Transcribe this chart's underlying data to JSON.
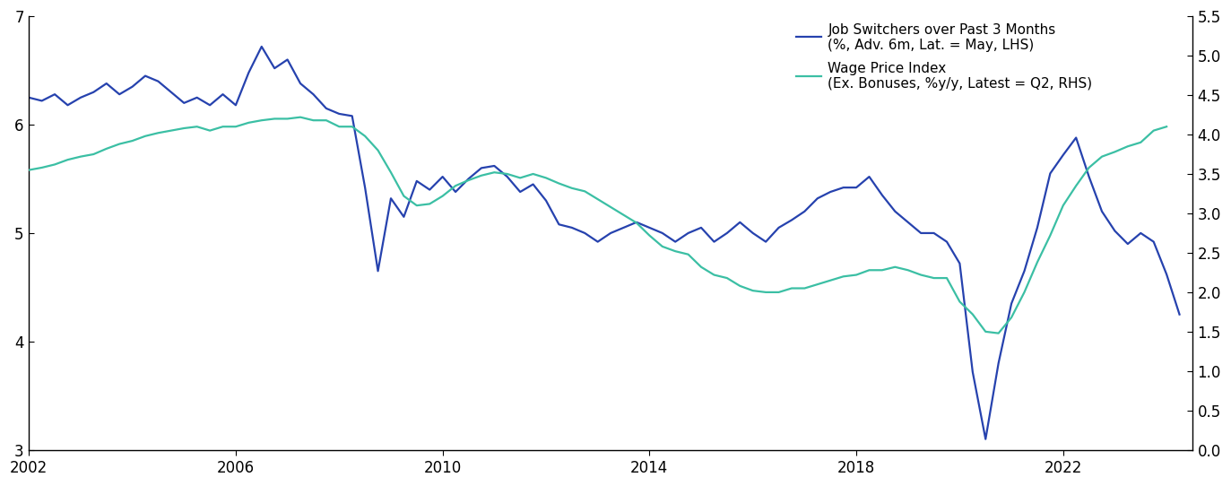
{
  "legend_line1": "Job Switchers over Past 3 Months",
  "legend_line2": "(%, Adv. 6m, Lat. = May, LHS)",
  "legend_line3": "Wage Price Index",
  "legend_line4": "(Ex. Bonuses, %y/y, Latest = Q2, RHS)",
  "blue_color": "#2642AE",
  "green_color": "#3BBFA4",
  "lhs_ylim": [
    3,
    7
  ],
  "lhs_yticks": [
    3,
    4,
    5,
    6,
    7
  ],
  "rhs_ylim": [
    0.0,
    5.5
  ],
  "rhs_yticks": [
    0.0,
    0.5,
    1.0,
    1.5,
    2.0,
    2.5,
    3.0,
    3.5,
    4.0,
    4.5,
    5.0,
    5.5
  ],
  "blue_x": [
    2002.0,
    2002.25,
    2002.5,
    2002.75,
    2003.0,
    2003.25,
    2003.5,
    2003.75,
    2004.0,
    2004.25,
    2004.5,
    2004.75,
    2005.0,
    2005.25,
    2005.5,
    2005.75,
    2006.0,
    2006.25,
    2006.5,
    2006.75,
    2007.0,
    2007.25,
    2007.5,
    2007.75,
    2008.0,
    2008.25,
    2008.5,
    2008.75,
    2009.0,
    2009.25,
    2009.5,
    2009.75,
    2010.0,
    2010.25,
    2010.5,
    2010.75,
    2011.0,
    2011.25,
    2011.5,
    2011.75,
    2012.0,
    2012.25,
    2012.5,
    2012.75,
    2013.0,
    2013.25,
    2013.5,
    2013.75,
    2014.0,
    2014.25,
    2014.5,
    2014.75,
    2015.0,
    2015.25,
    2015.5,
    2015.75,
    2016.0,
    2016.25,
    2016.5,
    2016.75,
    2017.0,
    2017.25,
    2017.5,
    2017.75,
    2018.0,
    2018.25,
    2018.5,
    2018.75,
    2019.0,
    2019.25,
    2019.5,
    2019.75,
    2020.0,
    2020.25,
    2020.5,
    2020.75,
    2021.0,
    2021.25,
    2021.5,
    2021.75,
    2022.0,
    2022.25,
    2022.5,
    2022.75,
    2023.0,
    2023.25,
    2023.5,
    2023.75,
    2024.0,
    2024.25
  ],
  "blue_y": [
    6.25,
    6.22,
    6.28,
    6.18,
    6.25,
    6.3,
    6.38,
    6.28,
    6.35,
    6.45,
    6.4,
    6.3,
    6.2,
    6.25,
    6.18,
    6.28,
    6.18,
    6.48,
    6.72,
    6.52,
    6.6,
    6.38,
    6.28,
    6.15,
    6.1,
    6.08,
    5.42,
    4.65,
    5.32,
    5.15,
    5.48,
    5.4,
    5.52,
    5.38,
    5.5,
    5.6,
    5.62,
    5.52,
    5.38,
    5.45,
    5.3,
    5.08,
    5.05,
    5.0,
    4.92,
    5.0,
    5.05,
    5.1,
    5.05,
    5.0,
    4.92,
    5.0,
    5.05,
    4.92,
    5.0,
    5.1,
    5.0,
    4.92,
    5.05,
    5.12,
    5.2,
    5.32,
    5.38,
    5.42,
    5.42,
    5.52,
    5.35,
    5.2,
    5.1,
    5.0,
    5.0,
    4.92,
    4.72,
    3.72,
    3.1,
    3.8,
    4.35,
    4.65,
    5.05,
    5.55,
    5.72,
    5.88,
    5.52,
    5.2,
    5.02,
    4.9,
    5.0,
    4.92,
    4.62,
    4.25
  ],
  "green_x": [
    2002.0,
    2002.25,
    2002.5,
    2002.75,
    2003.0,
    2003.25,
    2003.5,
    2003.75,
    2004.0,
    2004.25,
    2004.5,
    2004.75,
    2005.0,
    2005.25,
    2005.5,
    2005.75,
    2006.0,
    2006.25,
    2006.5,
    2006.75,
    2007.0,
    2007.25,
    2007.5,
    2007.75,
    2008.0,
    2008.25,
    2008.5,
    2008.75,
    2009.0,
    2009.25,
    2009.5,
    2009.75,
    2010.0,
    2010.25,
    2010.5,
    2010.75,
    2011.0,
    2011.25,
    2011.5,
    2011.75,
    2012.0,
    2012.25,
    2012.5,
    2012.75,
    2013.0,
    2013.25,
    2013.5,
    2013.75,
    2014.0,
    2014.25,
    2014.5,
    2014.75,
    2015.0,
    2015.25,
    2015.5,
    2015.75,
    2016.0,
    2016.25,
    2016.5,
    2016.75,
    2017.0,
    2017.25,
    2017.5,
    2017.75,
    2018.0,
    2018.25,
    2018.5,
    2018.75,
    2019.0,
    2019.25,
    2019.5,
    2019.75,
    2020.0,
    2020.25,
    2020.5,
    2020.75,
    2021.0,
    2021.25,
    2021.5,
    2021.75,
    2022.0,
    2022.25,
    2022.5,
    2022.75,
    2023.0,
    2023.25,
    2023.5,
    2023.75,
    2024.0
  ],
  "green_y_rhs": [
    3.55,
    3.58,
    3.62,
    3.68,
    3.72,
    3.75,
    3.82,
    3.88,
    3.92,
    3.98,
    4.02,
    4.05,
    4.08,
    4.1,
    4.05,
    4.1,
    4.1,
    4.15,
    4.18,
    4.2,
    4.2,
    4.22,
    4.18,
    4.18,
    4.1,
    4.1,
    3.98,
    3.8,
    3.52,
    3.22,
    3.1,
    3.12,
    3.22,
    3.35,
    3.42,
    3.48,
    3.52,
    3.5,
    3.45,
    3.5,
    3.45,
    3.38,
    3.32,
    3.28,
    3.18,
    3.08,
    2.98,
    2.88,
    2.72,
    2.58,
    2.52,
    2.48,
    2.32,
    2.22,
    2.18,
    2.08,
    2.02,
    2.0,
    2.0,
    2.05,
    2.05,
    2.1,
    2.15,
    2.2,
    2.22,
    2.28,
    2.28,
    2.32,
    2.28,
    2.22,
    2.18,
    2.18,
    1.88,
    1.72,
    1.5,
    1.48,
    1.68,
    2.0,
    2.38,
    2.72,
    3.1,
    3.35,
    3.58,
    3.72,
    3.78,
    3.85,
    3.9,
    4.05,
    4.1
  ],
  "xlim": [
    2002,
    2024.5
  ],
  "xticks": [
    2002,
    2006,
    2010,
    2014,
    2018,
    2022
  ],
  "tick_fontsize": 12,
  "legend_fontsize": 11
}
